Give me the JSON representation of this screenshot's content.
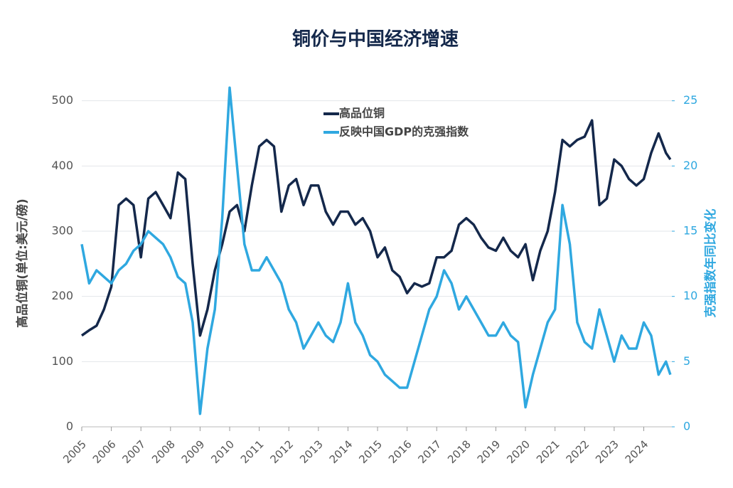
{
  "chart_data": {
    "type": "line",
    "title": "铜价与中国经济增速",
    "ylabel": "高品位铜(单位:美元/磅)",
    "y2label": "克强指数年同比变化",
    "x": [
      2005,
      2005.25,
      2005.5,
      2005.75,
      2006,
      2006.25,
      2006.5,
      2006.75,
      2007,
      2007.25,
      2007.5,
      2007.75,
      2008,
      2008.25,
      2008.5,
      2008.75,
      2009,
      2009.25,
      2009.5,
      2009.75,
      2010,
      2010.25,
      2010.5,
      2010.75,
      2011,
      2011.25,
      2011.5,
      2011.75,
      2012,
      2012.25,
      2012.5,
      2012.75,
      2013,
      2013.25,
      2013.5,
      2013.75,
      2014,
      2014.25,
      2014.5,
      2014.75,
      2015,
      2015.25,
      2015.5,
      2015.75,
      2016,
      2016.25,
      2016.5,
      2016.75,
      2017,
      2017.25,
      2017.5,
      2017.75,
      2018,
      2018.25,
      2018.5,
      2018.75,
      2019,
      2019.25,
      2019.5,
      2019.75,
      2020,
      2020.25,
      2020.5,
      2020.75,
      2021,
      2021.25,
      2021.5,
      2021.75,
      2022,
      2022.25,
      2022.5,
      2022.75,
      2023,
      2023.25,
      2023.5,
      2023.75,
      2024,
      2024.25,
      2024.5,
      2024.75,
      2024.9
    ],
    "xlim": [
      2005,
      2024.95
    ],
    "xticks": [
      2005,
      2006,
      2007,
      2008,
      2009,
      2010,
      2011,
      2012,
      2013,
      2014,
      2015,
      2016,
      2017,
      2018,
      2019,
      2020,
      2021,
      2022,
      2023,
      2024
    ],
    "ylim": [
      0,
      540
    ],
    "yticks": [
      0,
      100,
      200,
      300,
      400,
      500
    ],
    "y2lim": [
      0,
      27
    ],
    "y2ticks": [
      0,
      5,
      10,
      15,
      20,
      25
    ],
    "grid": true,
    "legend": "top",
    "series": [
      {
        "name": "高品位铜",
        "color": "#14284b",
        "values": [
          140,
          148,
          155,
          180,
          215,
          340,
          350,
          340,
          260,
          350,
          360,
          340,
          320,
          390,
          380,
          250,
          140,
          180,
          240,
          280,
          330,
          340,
          300,
          370,
          430,
          440,
          430,
          330,
          370,
          380,
          340,
          370,
          370,
          330,
          310,
          330,
          330,
          310,
          320,
          300,
          260,
          275,
          240,
          230,
          205,
          220,
          215,
          220,
          260,
          260,
          270,
          310,
          320,
          310,
          290,
          275,
          270,
          290,
          270,
          260,
          280,
          225,
          270,
          300,
          360,
          440,
          430,
          440,
          445,
          470,
          340,
          350,
          410,
          400,
          380,
          370,
          380,
          420,
          450,
          420,
          410
        ]
      },
      {
        "name": "反映中国GDP的克强指数",
        "color": "#2fa8e0",
        "axis": "y2",
        "values": [
          14,
          11,
          12,
          11.5,
          11,
          12,
          12.5,
          13.5,
          14,
          15,
          14.5,
          14,
          13,
          11.5,
          11,
          8,
          1,
          6,
          9,
          16,
          26,
          20,
          14,
          12,
          12,
          13,
          12,
          11,
          9,
          8,
          6,
          7,
          8,
          7,
          6.5,
          8,
          11,
          8,
          7,
          5.5,
          5,
          4,
          3.5,
          3,
          3,
          5,
          7,
          9,
          10,
          12,
          11,
          9,
          10,
          9,
          8,
          7,
          7,
          8,
          7,
          6.5,
          1.5,
          4,
          6,
          8,
          9,
          17,
          14,
          8,
          6.5,
          6,
          9,
          7,
          5,
          7,
          6,
          6,
          8,
          7,
          4,
          5,
          4
        ]
      }
    ]
  }
}
